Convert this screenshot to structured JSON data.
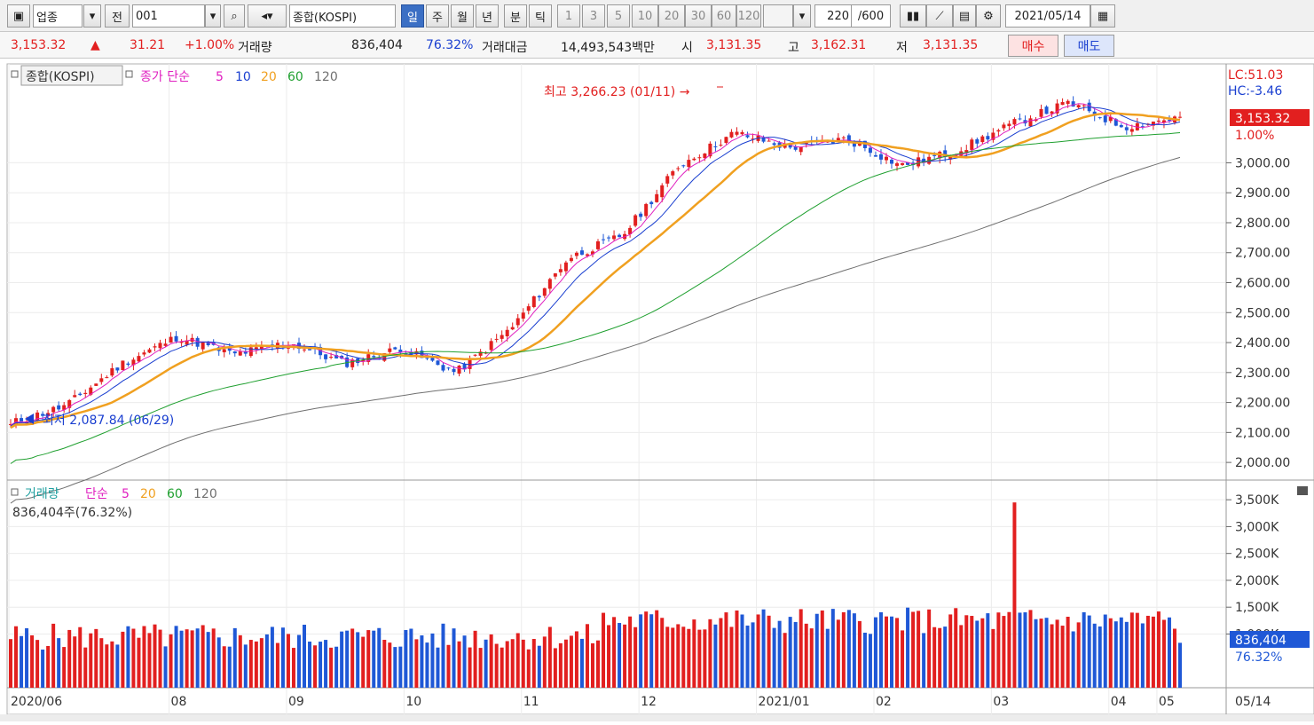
{
  "toolbar": {
    "type_select": "업종",
    "prev_label": "전",
    "code": "001",
    "search_icon": "search-icon",
    "sound_icon": "speaker-icon",
    "name": "종합(KOSPI)",
    "periods": [
      "일",
      "주",
      "월",
      "년",
      "분",
      "틱"
    ],
    "active_period": "일",
    "intervals": [
      "1",
      "3",
      "5",
      "10",
      "20",
      "30",
      "60",
      "120"
    ],
    "count": "220",
    "count_total": "/600",
    "date": "2021/05/14"
  },
  "quote": {
    "price": "3,153.32",
    "arrow": "▲",
    "change": "31.21",
    "pct": "+1.00%",
    "vol_label": "거래량",
    "volume": "836,404",
    "vol_ratio": "76.32%",
    "amount_label": "거래대금",
    "amount": "14,493,543백만",
    "open_label": "시",
    "open": "3,131.35",
    "high_label": "고",
    "high": "3,162.31",
    "low_label": "저",
    "low": "3,131.35",
    "buy": "매수",
    "sell": "매도"
  },
  "price_legend": {
    "name": "종합(KOSPI)",
    "ma_label": "종가 단순",
    "ma5": "5",
    "ma10": "10",
    "ma20": "20",
    "ma60": "60",
    "ma120": "120"
  },
  "annotations": {
    "high": "최고 3,266.23 (01/11) →",
    "low": "최저 2,087.84 (06/29)"
  },
  "price_axis": {
    "lc": "LC:51.03",
    "hc": "HC:-3.46",
    "current": "3,153.32",
    "current_pct": "1.00%",
    "ticks": [
      "3,000.00",
      "2,900.00",
      "2,800.00",
      "2,700.00",
      "2,600.00",
      "2,500.00",
      "2,400.00",
      "2,300.00",
      "2,200.00",
      "2,100.00",
      "2,000.00"
    ]
  },
  "volume_legend": {
    "name": "거래량",
    "ma_label": "단순",
    "ma5": "5",
    "ma20": "20",
    "ma60": "60",
    "ma120": "120",
    "current": "836,404주(76.32%)"
  },
  "volume_axis": {
    "ticks": [
      "3,500K",
      "3,000K",
      "2,500K",
      "2,000K",
      "1,500K",
      "1,000K"
    ],
    "current": "836,404",
    "current_pct": "76.32%"
  },
  "x_axis": {
    "labels": [
      "2020/06",
      "08",
      "09",
      "10",
      "11",
      "12",
      "2021/01",
      "02",
      "03",
      "04",
      "05"
    ],
    "right_label": "05/14"
  },
  "colors": {
    "up": "#e21f1f",
    "down": "#1f58d6",
    "ma5": "#e020c0",
    "ma10": "#1a3fd0",
    "ma20": "#f0a020",
    "ma60": "#20a030",
    "ma120": "#707070",
    "active": "#3b6fc4"
  },
  "chart_data": {
    "type": "candlestick",
    "period": "daily",
    "ylim": [
      1950,
      3330
    ],
    "high": {
      "value": 3266.23,
      "date": "01/11"
    },
    "low": {
      "value": 2087.84,
      "date": "06/29"
    },
    "last": 3153.32,
    "close_path": [
      [
        "2020/06",
        2130
      ],
      [
        "07",
        2190
      ],
      [
        "08",
        2330
      ],
      [
        "08",
        2420
      ],
      [
        "09",
        2360
      ],
      [
        "09",
        2400
      ],
      [
        "10",
        2330
      ],
      [
        "10",
        2380
      ],
      [
        "11",
        2300
      ],
      [
        "11",
        2450
      ],
      [
        "12",
        2680
      ],
      [
        "12",
        2760
      ],
      [
        "2021/01",
        2990
      ],
      [
        "2021/01",
        3100
      ],
      [
        "02",
        3050
      ],
      [
        "02",
        3080
      ],
      [
        "03",
        2990
      ],
      [
        "03",
        3040
      ],
      [
        "04",
        3130
      ],
      [
        "04",
        3200
      ],
      [
        "05",
        3120
      ],
      [
        "05/14",
        3153.32
      ]
    ],
    "volume_peak_K": 3450,
    "volume_last": 836404
  }
}
